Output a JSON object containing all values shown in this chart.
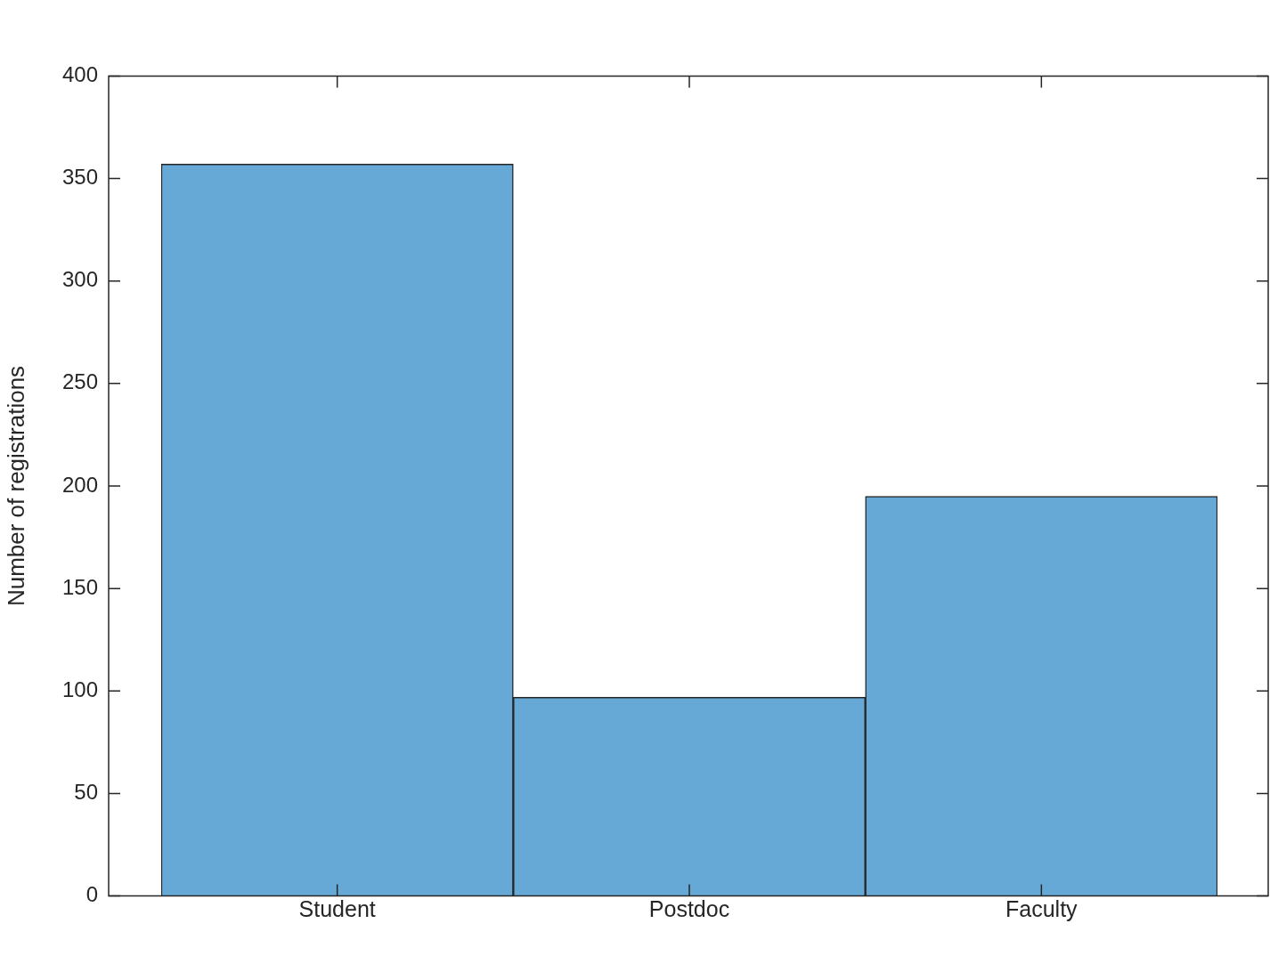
{
  "chart_data": {
    "type": "bar",
    "categories": [
      "Student",
      "Postdoc",
      "Faculty"
    ],
    "values": [
      357,
      97,
      195
    ],
    "color": "#66a9d6",
    "ylabel": "Number of registrations",
    "ylim": [
      0,
      400
    ],
    "yticks": [
      0,
      50,
      100,
      150,
      200,
      250,
      300,
      350,
      400
    ],
    "grid": false,
    "legend": false
  }
}
